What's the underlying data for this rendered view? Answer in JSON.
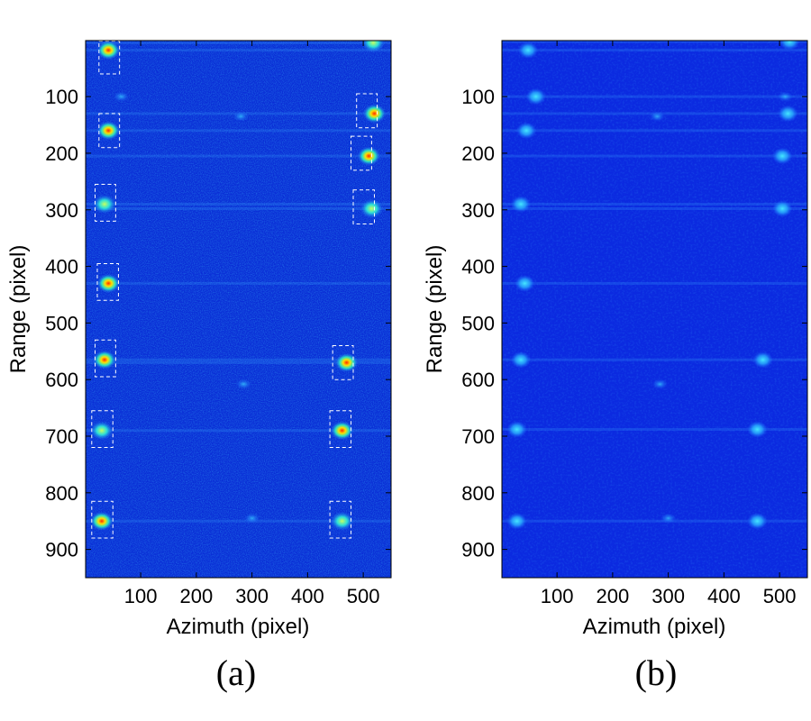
{
  "chart_data": [
    {
      "type": "heatmap",
      "caption": "(a)",
      "xlabel": "Azimuth (pixel)",
      "ylabel": "Range (pixel)",
      "xlim": [
        1,
        550
      ],
      "ylim": [
        1,
        950
      ],
      "y_inverted": true,
      "xticks": [
        100,
        200,
        300,
        400,
        500
      ],
      "yticks": [
        100,
        200,
        300,
        400,
        500,
        600,
        700,
        800,
        900
      ],
      "colormap": "jet",
      "background_color": "#0a2fd6",
      "point_targets": [
        {
          "x": 42,
          "y": 18
        },
        {
          "x": 518,
          "y": 5
        },
        {
          "x": 42,
          "y": 160
        },
        {
          "x": 520,
          "y": 130
        },
        {
          "x": 35,
          "y": 290
        },
        {
          "x": 510,
          "y": 205
        },
        {
          "x": 42,
          "y": 430
        },
        {
          "x": 515,
          "y": 298
        },
        {
          "x": 35,
          "y": 565
        },
        {
          "x": 470,
          "y": 570
        },
        {
          "x": 30,
          "y": 690
        },
        {
          "x": 462,
          "y": 690
        },
        {
          "x": 30,
          "y": 850
        },
        {
          "x": 462,
          "y": 850
        }
      ],
      "weak_targets": [
        {
          "x": 280,
          "y": 135
        },
        {
          "x": 300,
          "y": 845
        },
        {
          "x": 285,
          "y": 608
        },
        {
          "x": 65,
          "y": 100
        }
      ],
      "highlight_boxes": [
        {
          "x": [
            25,
            62
          ],
          "y": [
            2,
            60
          ]
        },
        {
          "x": [
            25,
            62
          ],
          "y": [
            130,
            190
          ]
        },
        {
          "x": [
            18,
            55
          ],
          "y": [
            255,
            320
          ]
        },
        {
          "x": [
            22,
            60
          ],
          "y": [
            395,
            460
          ]
        },
        {
          "x": [
            18,
            55
          ],
          "y": [
            530,
            595
          ]
        },
        {
          "x": [
            12,
            50
          ],
          "y": [
            655,
            720
          ]
        },
        {
          "x": [
            12,
            50
          ],
          "y": [
            815,
            880
          ]
        },
        {
          "x": [
            488,
            525
          ],
          "y": [
            95,
            155
          ]
        },
        {
          "x": [
            478,
            515
          ],
          "y": [
            170,
            230
          ]
        },
        {
          "x": [
            482,
            520
          ],
          "y": [
            265,
            325
          ]
        },
        {
          "x": [
            445,
            482
          ],
          "y": [
            540,
            600
          ]
        },
        {
          "x": [
            440,
            478
          ],
          "y": [
            655,
            720
          ]
        },
        {
          "x": [
            440,
            478
          ],
          "y": [
            815,
            880
          ]
        }
      ]
    },
    {
      "type": "heatmap",
      "caption": "(b)",
      "xlabel": "Azimuth (pixel)",
      "ylabel": "Range (pixel)",
      "xlim": [
        1,
        550
      ],
      "ylim": [
        1,
        950
      ],
      "y_inverted": true,
      "xticks": [
        100,
        200,
        300,
        400,
        500
      ],
      "yticks": [
        100,
        200,
        300,
        400,
        500,
        600,
        700,
        800,
        900
      ],
      "colormap": "jet",
      "background_color": "#0b2ae0",
      "point_targets": [
        {
          "x": 48,
          "y": 18
        },
        {
          "x": 518,
          "y": 3
        },
        {
          "x": 62,
          "y": 100
        },
        {
          "x": 515,
          "y": 130
        },
        {
          "x": 45,
          "y": 160
        },
        {
          "x": 505,
          "y": 205
        },
        {
          "x": 35,
          "y": 290
        },
        {
          "x": 505,
          "y": 298
        },
        {
          "x": 42,
          "y": 430
        },
        {
          "x": 470,
          "y": 565
        },
        {
          "x": 35,
          "y": 565
        },
        {
          "x": 460,
          "y": 688
        },
        {
          "x": 28,
          "y": 688
        },
        {
          "x": 460,
          "y": 850
        },
        {
          "x": 28,
          "y": 850
        }
      ],
      "weak_targets": [
        {
          "x": 280,
          "y": 135
        },
        {
          "x": 300,
          "y": 845
        },
        {
          "x": 285,
          "y": 608
        },
        {
          "x": 510,
          "y": 100
        }
      ],
      "highlight_boxes": []
    }
  ]
}
